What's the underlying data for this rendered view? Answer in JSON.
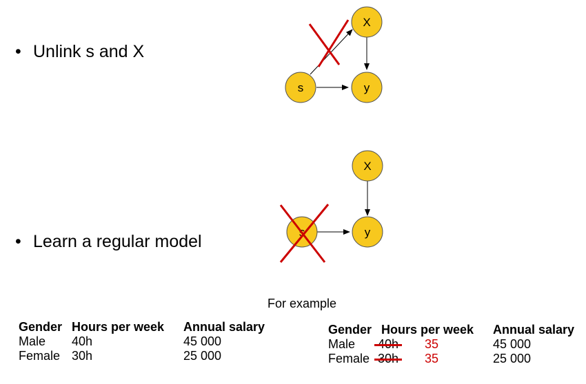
{
  "bullets": {
    "unlink": "Unlink s and X",
    "learn": "Learn a regular model",
    "symbol": "•"
  },
  "graph_top": {
    "nodes": {
      "x": "X",
      "s": "s",
      "y": "y"
    }
  },
  "graph_bottom": {
    "nodes": {
      "x": "X",
      "s": "s",
      "y": "y"
    }
  },
  "colors": {
    "node_fill": "#f7c81e",
    "node_stroke": "#555555",
    "cross": "#cc0000"
  },
  "caption": "For example",
  "table_left": {
    "headers": [
      "Gender",
      "Hours per week",
      "Annual salary"
    ],
    "rows": [
      {
        "gender": "Male",
        "hours": "40h",
        "salary": "45 000"
      },
      {
        "gender": "Female",
        "hours": "30h",
        "salary": "25 000"
      }
    ]
  },
  "table_right": {
    "headers": [
      "Gender",
      "Hours per week",
      "Annual salary"
    ],
    "rows": [
      {
        "gender": "Male",
        "hours_old": "40h",
        "hours_new": "35",
        "salary": "45 000"
      },
      {
        "gender": "Female",
        "hours_old": "30h",
        "hours_new": "35",
        "salary": "25 000"
      }
    ]
  }
}
